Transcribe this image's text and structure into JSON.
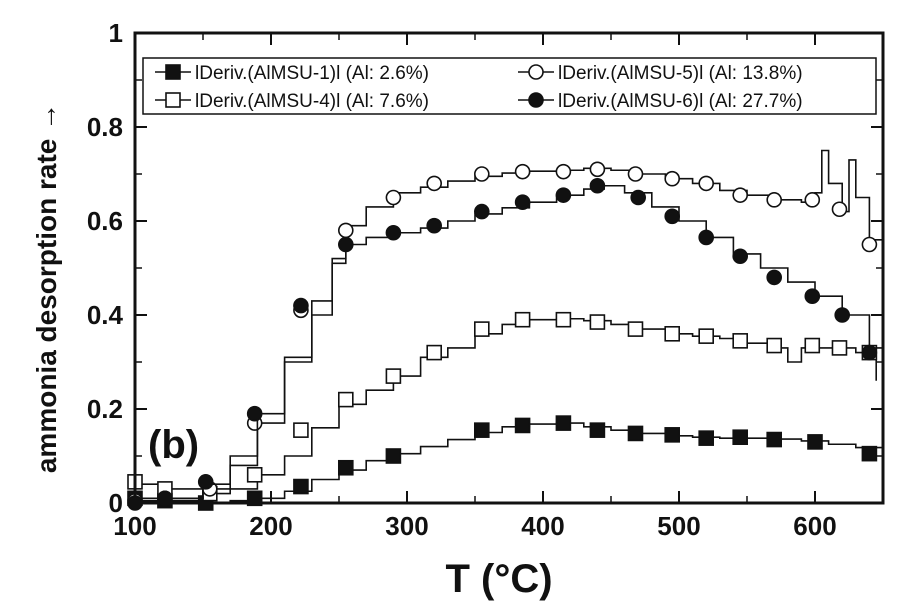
{
  "chart_data": {
    "type": "line",
    "title": "",
    "panel_label": "(b)",
    "xlabel": "T (°C)",
    "ylabel": "ammonia desorption rate →",
    "xlim": [
      100,
      650
    ],
    "ylim": [
      0,
      1
    ],
    "x_ticks": [
      100,
      200,
      300,
      400,
      500,
      600
    ],
    "y_ticks": [
      0,
      0.2,
      0.4,
      0.6,
      0.8,
      1
    ],
    "y_tick_labels": [
      "0",
      "0.2",
      "0.4",
      "0.6",
      "0.8",
      "1"
    ],
    "grid": false,
    "legend": "top",
    "series": [
      {
        "name": "lDeriv.(AlMSU-1)l (Al: 2.6%)",
        "marker": "filled-square",
        "line": [
          [
            100,
            0.01
          ],
          [
            120,
            0.005
          ],
          [
            150,
            0.0
          ],
          [
            170,
            0.005
          ],
          [
            190,
            0.01
          ],
          [
            210,
            0.025
          ],
          [
            230,
            0.05
          ],
          [
            250,
            0.07
          ],
          [
            270,
            0.09
          ],
          [
            290,
            0.105
          ],
          [
            310,
            0.12
          ],
          [
            330,
            0.135
          ],
          [
            350,
            0.15
          ],
          [
            370,
            0.162
          ],
          [
            390,
            0.168
          ],
          [
            410,
            0.17
          ],
          [
            430,
            0.162
          ],
          [
            450,
            0.155
          ],
          [
            470,
            0.148
          ],
          [
            490,
            0.143
          ],
          [
            510,
            0.14
          ],
          [
            530,
            0.138
          ],
          [
            550,
            0.138
          ],
          [
            570,
            0.136
          ],
          [
            590,
            0.132
          ],
          [
            610,
            0.125
          ],
          [
            630,
            0.118
          ],
          [
            650,
            0.11
          ]
        ],
        "markers": [
          [
            100,
            0.01
          ],
          [
            122,
            0.005
          ],
          [
            152,
            0.0
          ],
          [
            188,
            0.01
          ],
          [
            222,
            0.035
          ],
          [
            255,
            0.075
          ],
          [
            290,
            0.1
          ],
          [
            355,
            0.155
          ],
          [
            385,
            0.165
          ],
          [
            415,
            0.17
          ],
          [
            440,
            0.155
          ],
          [
            468,
            0.148
          ],
          [
            495,
            0.145
          ],
          [
            520,
            0.138
          ],
          [
            545,
            0.14
          ],
          [
            570,
            0.135
          ],
          [
            600,
            0.13
          ],
          [
            640,
            0.105
          ]
        ]
      },
      {
        "name": "lDeriv.(AlMSU-4)l (Al: 7.6%)",
        "marker": "open-square",
        "line": [
          [
            100,
            0.04
          ],
          [
            120,
            0.03
          ],
          [
            150,
            0.02
          ],
          [
            170,
            0.03
          ],
          [
            190,
            0.06
          ],
          [
            210,
            0.1
          ],
          [
            230,
            0.16
          ],
          [
            250,
            0.21
          ],
          [
            270,
            0.24
          ],
          [
            290,
            0.27
          ],
          [
            310,
            0.31
          ],
          [
            330,
            0.33
          ],
          [
            350,
            0.36
          ],
          [
            370,
            0.38
          ],
          [
            390,
            0.39
          ],
          [
            410,
            0.392
          ],
          [
            430,
            0.388
          ],
          [
            450,
            0.38
          ],
          [
            470,
            0.37
          ],
          [
            490,
            0.36
          ],
          [
            510,
            0.355
          ],
          [
            530,
            0.35
          ],
          [
            550,
            0.34
          ],
          [
            570,
            0.33
          ],
          [
            580,
            0.3
          ],
          [
            590,
            0.33
          ],
          [
            610,
            0.33
          ],
          [
            630,
            0.32
          ],
          [
            645,
            0.26
          ]
        ],
        "markers": [
          [
            100,
            0.045
          ],
          [
            122,
            0.03
          ],
          [
            155,
            0.02
          ],
          [
            188,
            0.06
          ],
          [
            222,
            0.155
          ],
          [
            255,
            0.22
          ],
          [
            290,
            0.27
          ],
          [
            320,
            0.32
          ],
          [
            355,
            0.37
          ],
          [
            385,
            0.39
          ],
          [
            415,
            0.39
          ],
          [
            440,
            0.385
          ],
          [
            468,
            0.37
          ],
          [
            495,
            0.36
          ],
          [
            520,
            0.355
          ],
          [
            545,
            0.345
          ],
          [
            570,
            0.335
          ],
          [
            598,
            0.335
          ],
          [
            618,
            0.33
          ],
          [
            640,
            0.32
          ]
        ]
      },
      {
        "name": "lDeriv.(AlMSU-5)l (Al: 13.8%)",
        "marker": "open-circle",
        "line": [
          [
            100,
            0.005
          ],
          [
            120,
            0.01
          ],
          [
            150,
            0.03
          ],
          [
            170,
            0.08
          ],
          [
            190,
            0.17
          ],
          [
            210,
            0.3
          ],
          [
            230,
            0.4
          ],
          [
            245,
            0.52
          ],
          [
            255,
            0.59
          ],
          [
            270,
            0.63
          ],
          [
            290,
            0.66
          ],
          [
            310,
            0.672
          ],
          [
            330,
            0.685
          ],
          [
            350,
            0.695
          ],
          [
            370,
            0.702
          ],
          [
            390,
            0.706
          ],
          [
            410,
            0.708
          ],
          [
            430,
            0.712
          ],
          [
            450,
            0.708
          ],
          [
            470,
            0.7
          ],
          [
            490,
            0.69
          ],
          [
            510,
            0.68
          ],
          [
            530,
            0.665
          ],
          [
            550,
            0.655
          ],
          [
            570,
            0.645
          ],
          [
            590,
            0.64
          ],
          [
            600,
            0.66
          ],
          [
            605,
            0.75
          ],
          [
            610,
            0.68
          ],
          [
            620,
            0.62
          ],
          [
            625,
            0.73
          ],
          [
            630,
            0.65
          ],
          [
            640,
            0.56
          ],
          [
            650,
            0.52
          ]
        ],
        "markers": [
          [
            100,
            0.005
          ],
          [
            122,
            0.01
          ],
          [
            155,
            0.03
          ],
          [
            188,
            0.17
          ],
          [
            222,
            0.41
          ],
          [
            255,
            0.58
          ],
          [
            290,
            0.65
          ],
          [
            320,
            0.68
          ],
          [
            355,
            0.7
          ],
          [
            385,
            0.705
          ],
          [
            415,
            0.705
          ],
          [
            440,
            0.71
          ],
          [
            468,
            0.7
          ],
          [
            495,
            0.69
          ],
          [
            520,
            0.68
          ],
          [
            545,
            0.655
          ],
          [
            570,
            0.645
          ],
          [
            598,
            0.645
          ],
          [
            618,
            0.625
          ],
          [
            640,
            0.55
          ]
        ]
      },
      {
        "name": "lDeriv.(AlMSU-6)l (Al: 27.7%)",
        "marker": "filled-circle",
        "line": [
          [
            100,
            0.0
          ],
          [
            120,
            0.01
          ],
          [
            150,
            0.04
          ],
          [
            170,
            0.1
          ],
          [
            190,
            0.19
          ],
          [
            210,
            0.31
          ],
          [
            230,
            0.43
          ],
          [
            245,
            0.51
          ],
          [
            255,
            0.55
          ],
          [
            270,
            0.565
          ],
          [
            290,
            0.575
          ],
          [
            310,
            0.585
          ],
          [
            330,
            0.6
          ],
          [
            350,
            0.615
          ],
          [
            370,
            0.628
          ],
          [
            390,
            0.64
          ],
          [
            410,
            0.655
          ],
          [
            430,
            0.668
          ],
          [
            445,
            0.675
          ],
          [
            460,
            0.66
          ],
          [
            480,
            0.63
          ],
          [
            500,
            0.6
          ],
          [
            520,
            0.565
          ],
          [
            540,
            0.53
          ],
          [
            560,
            0.5
          ],
          [
            580,
            0.47
          ],
          [
            600,
            0.44
          ],
          [
            620,
            0.4
          ],
          [
            640,
            0.33
          ],
          [
            650,
            0.3
          ]
        ],
        "markers": [
          [
            100,
            0.0
          ],
          [
            122,
            0.01
          ],
          [
            152,
            0.045
          ],
          [
            188,
            0.19
          ],
          [
            222,
            0.42
          ],
          [
            255,
            0.55
          ],
          [
            290,
            0.575
          ],
          [
            320,
            0.59
          ],
          [
            355,
            0.62
          ],
          [
            385,
            0.64
          ],
          [
            415,
            0.655
          ],
          [
            440,
            0.675
          ],
          [
            470,
            0.65
          ],
          [
            495,
            0.61
          ],
          [
            520,
            0.565
          ],
          [
            545,
            0.525
          ],
          [
            570,
            0.48
          ],
          [
            598,
            0.44
          ],
          [
            620,
            0.4
          ],
          [
            640,
            0.32
          ]
        ]
      }
    ]
  }
}
